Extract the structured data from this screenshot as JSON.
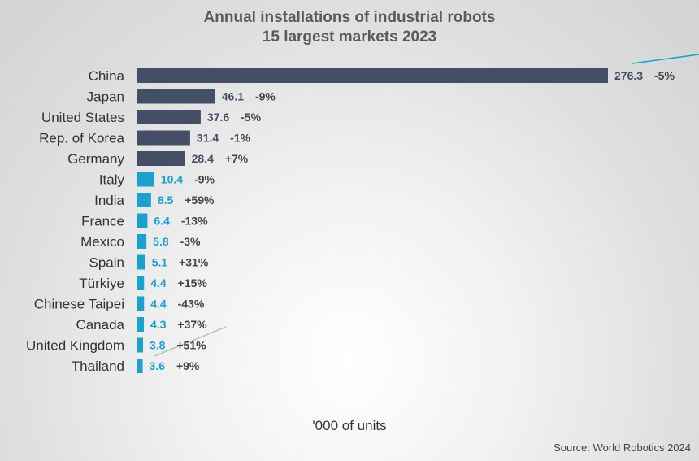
{
  "chart_data": {
    "type": "bar",
    "orientation": "horizontal",
    "title": [
      "Annual installations of industrial robots",
      "15 largest markets 2023"
    ],
    "xlabel": "'000 of units",
    "source": "Source: World Robotics 2024",
    "categories": [
      "China",
      "Japan",
      "United States",
      "Rep. of Korea",
      "Germany",
      "Italy",
      "India",
      "France",
      "Mexico",
      "Spain",
      "Türkiye",
      "Chinese Taipei",
      "Canada",
      "United Kingdom",
      "Thailand"
    ],
    "values": [
      276.3,
      46.1,
      37.6,
      31.4,
      28.4,
      10.4,
      8.5,
      6.4,
      5.8,
      5.1,
      4.4,
      4.4,
      4.3,
      3.8,
      3.6
    ],
    "value_labels": [
      "276.3",
      "46.1",
      "37.6",
      "31.4",
      "28.4",
      "10.4",
      "8.5",
      "6.4",
      "5.8",
      "5.1",
      "4.4",
      "4.4",
      "4.3",
      "3.8",
      "3.6"
    ],
    "change_labels": [
      "-5%",
      "-9%",
      "-5%",
      "-1%",
      "+7%",
      "-9%",
      "+59%",
      "-13%",
      "-3%",
      "+31%",
      "+15%",
      "-43%",
      "+37%",
      "+51%",
      "+9%"
    ],
    "colors": [
      "#444f66",
      "#444f66",
      "#444f66",
      "#444f66",
      "#444f66",
      "#1aa1cf",
      "#1aa1cf",
      "#1aa1cf",
      "#1aa1cf",
      "#1aa1cf",
      "#1aa1cf",
      "#1aa1cf",
      "#1aa1cf",
      "#1aa1cf",
      "#1aa1cf"
    ],
    "xlim": [
      0,
      276.3
    ],
    "grid": false,
    "legend": "none"
  }
}
